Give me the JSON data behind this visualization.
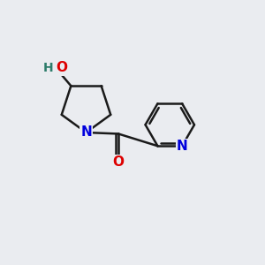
{
  "background_color": "#eaecf0",
  "bond_color": "#1a1a1a",
  "bond_width": 1.8,
  "atom_colors": {
    "N": "#0000dd",
    "O_carbonyl": "#dd0000",
    "O_hydroxyl": "#dd0000",
    "H": "#2e7d6b",
    "C": "#1a1a1a"
  },
  "font_size_atoms": 11,
  "font_size_H": 10
}
